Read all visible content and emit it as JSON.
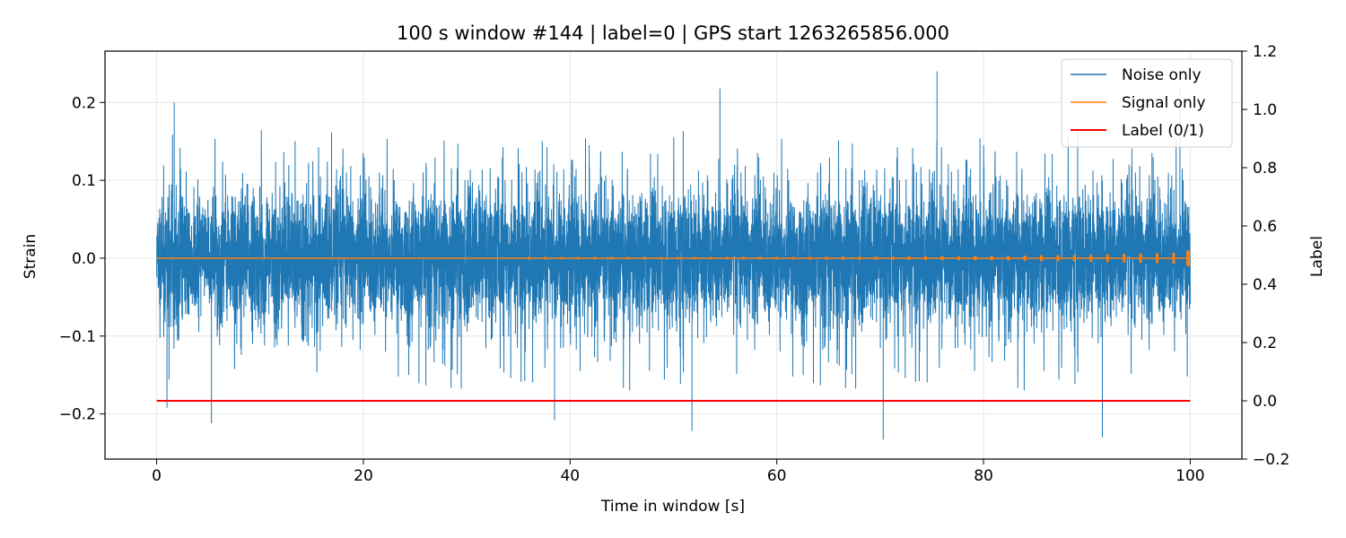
{
  "chart_data": {
    "type": "line",
    "title": "100 s window #144 | label=0 | GPS start 1263265856.000",
    "xlabel": "Time in window [s]",
    "ylabel": "Strain",
    "y2label": "Label",
    "xlim": [
      -5,
      105
    ],
    "ylim": [
      -0.258,
      0.266
    ],
    "y2lim": [
      -0.2,
      1.2
    ],
    "xticks": [
      0,
      20,
      40,
      60,
      80,
      100
    ],
    "xtick_labels": [
      "0",
      "20",
      "40",
      "60",
      "80",
      "100"
    ],
    "yticks": [
      -0.2,
      -0.1,
      0.0,
      0.1,
      0.2
    ],
    "ytick_labels": [
      "−0.2",
      "−0.1",
      "0.0",
      "0.1",
      "0.2"
    ],
    "y2ticks": [
      -0.2,
      0.0,
      0.2,
      0.4,
      0.6,
      0.8,
      1.0,
      1.2
    ],
    "y2tick_labels": [
      "−0.2",
      "0.0",
      "0.2",
      "0.4",
      "0.6",
      "0.8",
      "1.0",
      "1.2"
    ],
    "grid": true,
    "legend_position": "top-right",
    "series": [
      {
        "name": "Noise only",
        "color": "#1f77b4",
        "axis": "left",
        "kind": "dense-noise",
        "x_range": [
          0,
          100
        ],
        "typical_envelope": [
          -0.12,
          0.13
        ],
        "extremes": [
          {
            "x": 1.7,
            "y": 0.2
          },
          {
            "x": 54.5,
            "y": 0.218
          },
          {
            "x": 75.5,
            "y": 0.24
          },
          {
            "x": 99.0,
            "y": 0.22
          },
          {
            "x": 5.3,
            "y": -0.212
          },
          {
            "x": 51.8,
            "y": -0.222
          },
          {
            "x": 70.3,
            "y": -0.233
          },
          {
            "x": 91.5,
            "y": -0.23
          },
          {
            "x": 38.5,
            "y": -0.208
          },
          {
            "x": 1.0,
            "y": -0.192
          }
        ]
      },
      {
        "name": "Signal only",
        "color": "#ff7f0e",
        "axis": "left",
        "x": [
          0,
          100
        ],
        "y": [
          0.0,
          0.0
        ],
        "chirp_end_x": 100
      },
      {
        "name": "Label (0/1)",
        "color": "#ff0000",
        "axis": "right",
        "x": [
          0,
          100
        ],
        "y": [
          0,
          0
        ]
      }
    ]
  }
}
